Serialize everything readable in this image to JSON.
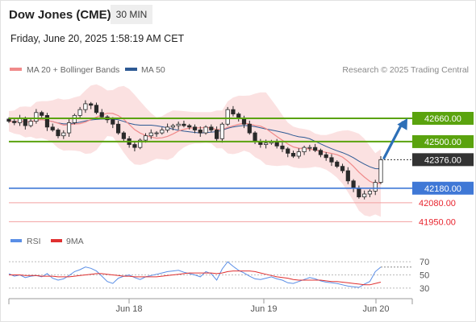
{
  "header": {
    "instrument": "Dow Jones (CME)",
    "timeframe": "30 MIN",
    "datetime": "Friday, June 20, 2025 1:58:19 AM CET"
  },
  "legend": {
    "ma20": "MA 20 + Bollinger Bands",
    "ma50": "MA 50",
    "credit": "Research © 2025 Trading Central"
  },
  "rsi_legend": {
    "rsi": "RSI",
    "ma": "9MA"
  },
  "colors": {
    "resistance": "#5aa30e",
    "support_blue": "#3f78d6",
    "support_red": "#e8242e",
    "current": "#333333",
    "ma20": "#f08a8a",
    "ma50": "#2e5a94",
    "rsi": "#5a8ee6",
    "rsi_ma": "#e03030",
    "arrow": "#2d6fb7"
  },
  "chart_data": [
    {
      "type": "candlestick",
      "x_labels": [
        "Jun 18",
        "Jun 19",
        "Jun 20"
      ],
      "levels": [
        {
          "value": 42660.0,
          "label": "42660.00",
          "kind": "resistance"
        },
        {
          "value": 42500.0,
          "label": "42500.00",
          "kind": "resistance"
        },
        {
          "value": 42376.0,
          "label": "42376.00",
          "kind": "current"
        },
        {
          "value": 42180.0,
          "label": "42180.00",
          "kind": "support"
        },
        {
          "value": 42080.0,
          "label": "42080.00",
          "kind": "support-minor"
        },
        {
          "value": 41950.0,
          "label": "41950.00",
          "kind": "support-minor"
        }
      ],
      "ylim": [
        41880,
        42920
      ],
      "close": [
        42640,
        42630,
        42660,
        42610,
        42640,
        42700,
        42680,
        42600,
        42580,
        42540,
        42560,
        42630,
        42680,
        42720,
        42760,
        42750,
        42700,
        42670,
        42650,
        42620,
        42560,
        42520,
        42480,
        42460,
        42510,
        42540,
        42560,
        42560,
        42580,
        42600,
        42610,
        42620,
        42610,
        42600,
        42580,
        42560,
        42600,
        42580,
        42520,
        42620,
        42720,
        42690,
        42660,
        42620,
        42560,
        42500,
        42480,
        42490,
        42500,
        42470,
        42450,
        42420,
        42400,
        42430,
        42460,
        42460,
        42440,
        42410,
        42390,
        42360,
        42330,
        42300,
        42230,
        42180,
        42120,
        42140,
        42160,
        42220,
        42376
      ],
      "projection": {
        "from": 42376,
        "to": 42660
      }
    },
    {
      "type": "line",
      "title": "RSI",
      "ticks": [
        70,
        50,
        30
      ],
      "ylim": [
        20,
        80
      ],
      "rsi": [
        52,
        48,
        50,
        46,
        48,
        49,
        47,
        52,
        45,
        42,
        44,
        49,
        55,
        58,
        62,
        60,
        56,
        48,
        40,
        37,
        45,
        48,
        50,
        46,
        43,
        47,
        49,
        51,
        53,
        55,
        56,
        57,
        54,
        52,
        50,
        47,
        55,
        52,
        42,
        59,
        70,
        63,
        57,
        53,
        48,
        44,
        43,
        45,
        47,
        44,
        42,
        38,
        37,
        40,
        43,
        46,
        44,
        41,
        39,
        38,
        37,
        35,
        33,
        32,
        31,
        36,
        40,
        55,
        62
      ],
      "ma": [
        50,
        50,
        50,
        49,
        49,
        49,
        48,
        48,
        48,
        47,
        47,
        47,
        48,
        49,
        50,
        51,
        52,
        52,
        51,
        50,
        49,
        48,
        48,
        47,
        47,
        47,
        47,
        47,
        48,
        49,
        50,
        51,
        52,
        53,
        53,
        53,
        53,
        53,
        52,
        53,
        55,
        56,
        56,
        56,
        56,
        55,
        53,
        51,
        49,
        47,
        46,
        45,
        43,
        42,
        42,
        42,
        42,
        42,
        41,
        40,
        40,
        39,
        38,
        37,
        36,
        35,
        35,
        37,
        39
      ]
    }
  ]
}
